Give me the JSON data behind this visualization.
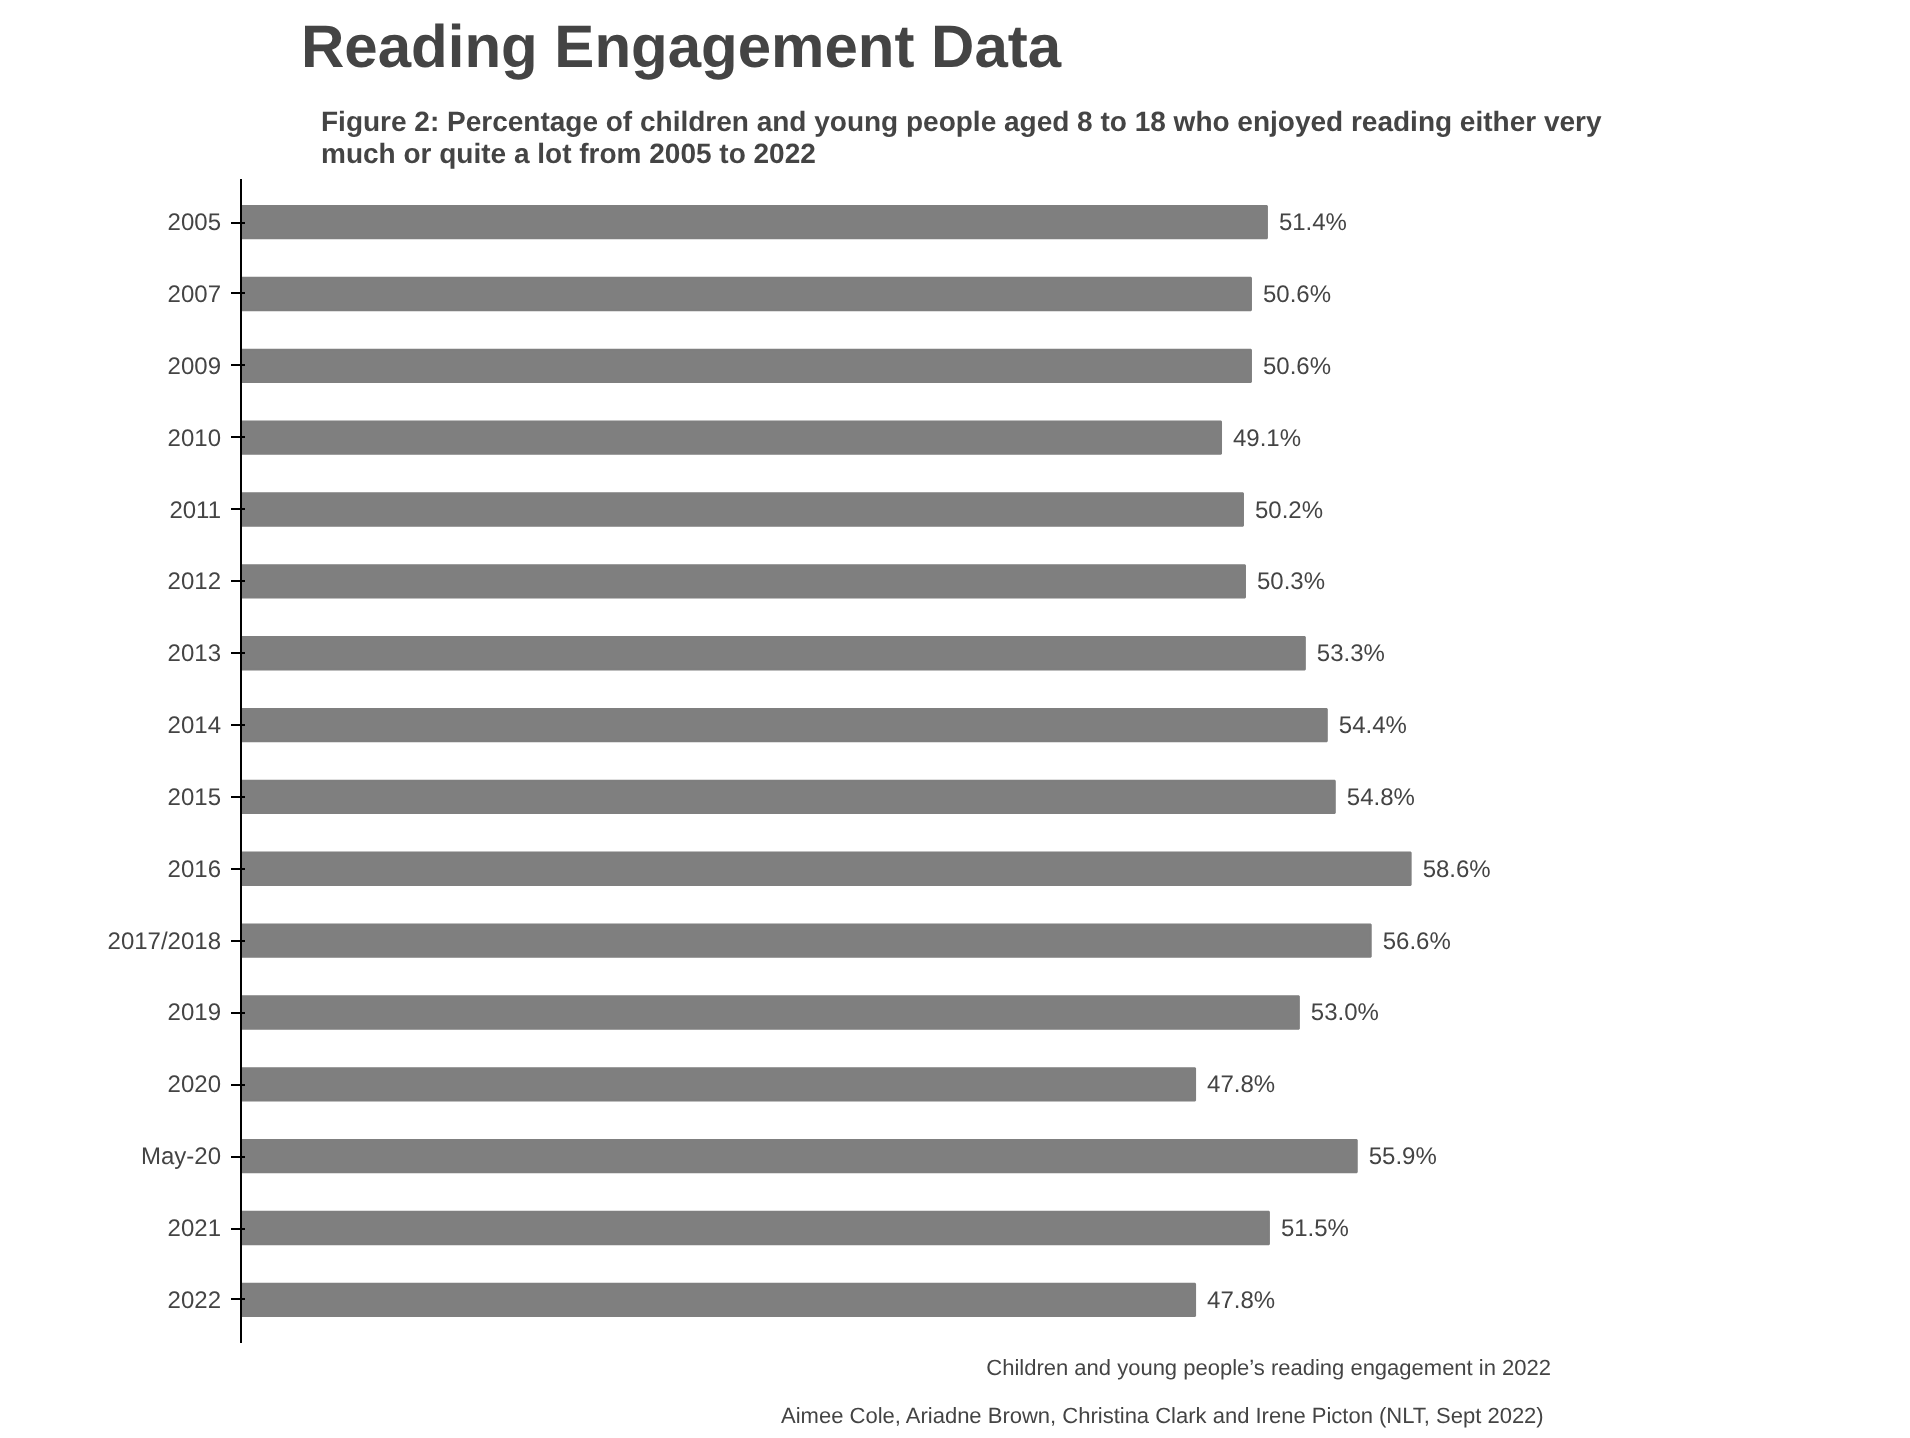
{
  "chart_data": {
    "type": "bar",
    "orientation": "horizontal",
    "title": "Reading Engagement Data",
    "subtitle": "Figure 2: Percentage of children and young people aged 8 to 18 who enjoyed reading either very much or quite a lot from 2005 to 2022",
    "categories": [
      "2005",
      "2007",
      "2009",
      "2010",
      "2011",
      "2012",
      "2013",
      "2014",
      "2015",
      "2016",
      "2017/2018",
      "2019",
      "2020",
      "May-20",
      "2021",
      "2022"
    ],
    "values": [
      51.4,
      50.6,
      50.6,
      49.1,
      50.2,
      50.3,
      53.3,
      54.4,
      54.8,
      58.6,
      56.6,
      53.0,
      47.8,
      55.9,
      51.5,
      47.8
    ],
    "value_labels": [
      "51.4%",
      "50.6%",
      "50.6%",
      "49.1%",
      "50.2%",
      "50.3%",
      "53.3%",
      "54.4%",
      "54.8%",
      "58.6%",
      "56.6%",
      "53.0%",
      "47.8%",
      "55.9%",
      "51.5%",
      "47.8%"
    ],
    "color": "#7f7f7f",
    "tick_labels": "y",
    "grid": false,
    "annotations": [
      "Children and young people’s reading engagement in 2022",
      "Aimee Cole, Ariadne Brown, Christina Clark and Irene Picton  (NLT, Sept 2022)"
    ]
  }
}
